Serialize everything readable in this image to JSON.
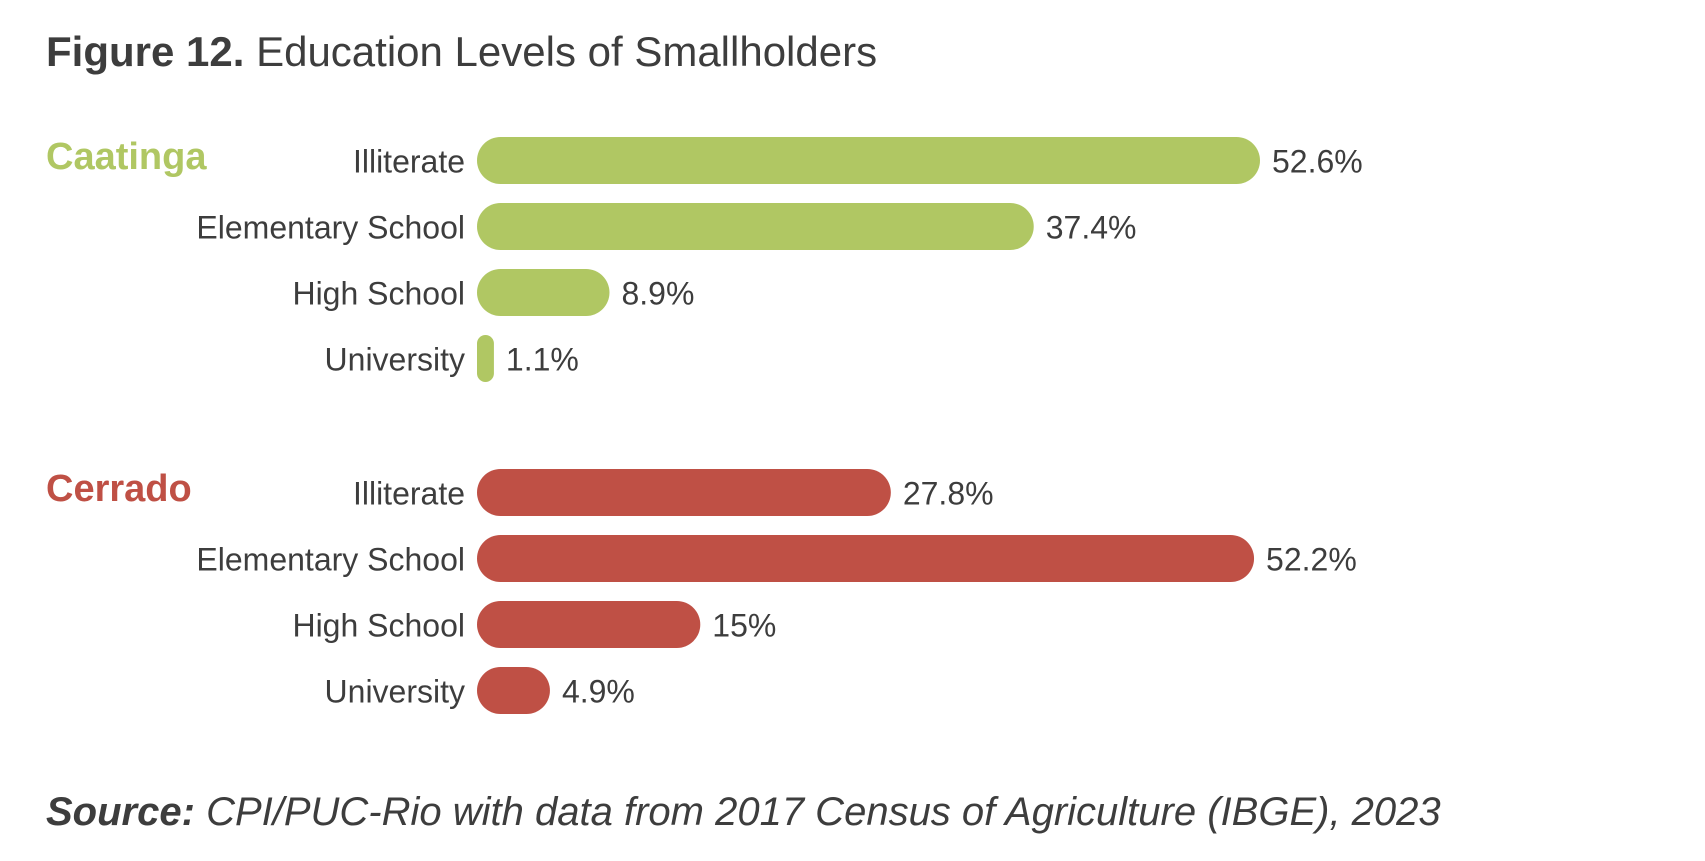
{
  "figure": {
    "title_lead": "Figure 12.",
    "title_text": "Education Levels of Smallholders"
  },
  "source": {
    "lead": "Source:",
    "text": "CPI/PUC-Rio with data from 2017 Census of Agriculture (IBGE), 2023"
  },
  "chart_data": {
    "type": "bar",
    "orientation": "horizontal",
    "categories": [
      "Illiterate",
      "Elementary School",
      "High School",
      "University"
    ],
    "value_max": 52.6,
    "series": [
      {
        "name": "Caatinga",
        "color": "#b0c763",
        "values": [
          52.6,
          37.4,
          8.9,
          1.1
        ],
        "labels": [
          "52.6%",
          "37.4%",
          "8.9%",
          "1.1%"
        ]
      },
      {
        "name": "Cerrado",
        "color": "#bf5045",
        "values": [
          27.8,
          52.2,
          15,
          4.9
        ],
        "labels": [
          "27.8%",
          "52.2%",
          "15%",
          "4.9%"
        ]
      }
    ]
  }
}
